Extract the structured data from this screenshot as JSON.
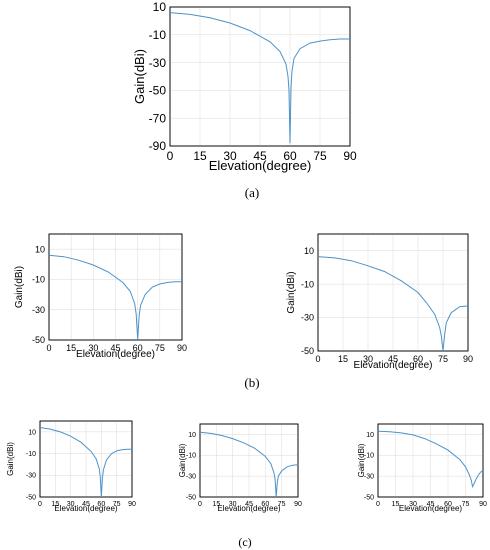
{
  "panel_labels": {
    "a": "(a)",
    "b": "(b)",
    "c": "(c)"
  },
  "colors": {
    "line": "#4c92c9",
    "grid": "#d9d9d9",
    "axes": "#000000"
  },
  "chart_data": [
    {
      "id": "a",
      "type": "line",
      "xlabel": "Elevation(degree)",
      "ylabel": "Gain(dBi)",
      "xlim": [
        0,
        90
      ],
      "ylim": [
        -90,
        10
      ],
      "xticks": [
        "0",
        "15",
        "30",
        "45",
        "60",
        "75",
        "90"
      ],
      "yticks": [
        "10",
        "-10",
        "-30",
        "-50",
        "-70",
        "-90"
      ],
      "grid": true,
      "series": [
        {
          "x": [
            0,
            10,
            20,
            30,
            40,
            50,
            55,
            58,
            59,
            59.5,
            60,
            60.5,
            61,
            62,
            65,
            70,
            75,
            80,
            85,
            90
          ],
          "y": [
            6,
            4.7,
            2.2,
            -1.5,
            -7,
            -15,
            -22,
            -31,
            -40,
            -50,
            -88,
            -48,
            -36,
            -27,
            -20,
            -16,
            -14.5,
            -13.5,
            -13,
            -13
          ]
        }
      ]
    },
    {
      "id": "b1",
      "type": "line",
      "xlabel": "Elevation(degree)",
      "ylabel": "Gain(dBi)",
      "xlim": [
        0,
        90
      ],
      "ylim": [
        -50,
        20
      ],
      "xticks": [
        "0",
        "15",
        "30",
        "45",
        "60",
        "75",
        "90"
      ],
      "yticks": [
        "10",
        "-10",
        "-30",
        "-50"
      ],
      "grid": true,
      "series": [
        {
          "x": [
            0,
            10,
            20,
            30,
            40,
            50,
            55,
            58,
            59,
            60,
            61,
            62,
            65,
            70,
            75,
            80,
            85,
            90
          ],
          "y": [
            6,
            5,
            2.7,
            -0.5,
            -5,
            -12,
            -18,
            -26,
            -33,
            -50,
            -34,
            -27,
            -20,
            -15,
            -13,
            -12,
            -11.5,
            -11.5
          ]
        }
      ]
    },
    {
      "id": "b2",
      "type": "line",
      "xlabel": "Elevation(degree)",
      "ylabel": "Gain(dBi)",
      "xlim": [
        0,
        90
      ],
      "ylim": [
        -50,
        20
      ],
      "xticks": [
        "0",
        "15",
        "30",
        "45",
        "60",
        "75",
        "90"
      ],
      "yticks": [
        "10",
        "-10",
        "-30",
        "-50"
      ],
      "grid": true,
      "series": [
        {
          "x": [
            0,
            10,
            20,
            30,
            40,
            50,
            60,
            65,
            70,
            73,
            74,
            75,
            76,
            77,
            80,
            85,
            90
          ],
          "y": [
            6.5,
            5.7,
            4,
            1,
            -2.5,
            -8,
            -15,
            -21,
            -28,
            -36,
            -41,
            -50,
            -40,
            -33,
            -27,
            -23.5,
            -23
          ]
        }
      ]
    },
    {
      "id": "c1",
      "type": "line",
      "xlabel": "Elevation(degree)",
      "ylabel": "Gain(dBi)",
      "xlim": [
        0,
        90
      ],
      "ylim": [
        -50,
        20
      ],
      "xticks": [
        "0",
        "15",
        "30",
        "45",
        "60",
        "75",
        "90"
      ],
      "yticks": [
        "10",
        "-10",
        "-30",
        "-50"
      ],
      "grid": true,
      "series": [
        {
          "x": [
            0,
            10,
            20,
            30,
            40,
            50,
            55,
            58,
            59,
            60,
            61,
            62,
            65,
            70,
            75,
            80,
            85,
            90
          ],
          "y": [
            14,
            12.5,
            10,
            6,
            0.5,
            -8,
            -15,
            -24,
            -32,
            -50,
            -33,
            -25,
            -16,
            -10,
            -7.5,
            -6.5,
            -6,
            -6
          ]
        }
      ]
    },
    {
      "id": "c2",
      "type": "line",
      "xlabel": "Elevation(degree)",
      "ylabel": "Gain(dBi)",
      "xlim": [
        0,
        90
      ],
      "ylim": [
        -50,
        20
      ],
      "xticks": [
        "0",
        "15",
        "30",
        "45",
        "60",
        "75",
        "90"
      ],
      "yticks": [
        "10",
        "-10",
        "-30",
        "-50"
      ],
      "grid": true,
      "series": [
        {
          "x": [
            0,
            10,
            20,
            30,
            40,
            50,
            60,
            65,
            68,
            69,
            70,
            71,
            72,
            75,
            80,
            85,
            90
          ],
          "y": [
            12,
            11,
            9,
            6,
            2,
            -3,
            -11,
            -18,
            -27,
            -33,
            -50,
            -36,
            -30,
            -25,
            -21,
            -19.5,
            -19
          ]
        }
      ]
    },
    {
      "id": "c3",
      "type": "line",
      "xlabel": "Elevation(degree)",
      "ylabel": "Gain(dBi)",
      "xlim": [
        0,
        90
      ],
      "ylim": [
        -50,
        20
      ],
      "xticks": [
        "0",
        "15",
        "30",
        "45",
        "60",
        "75",
        "90"
      ],
      "yticks": [
        "10",
        "-10",
        "-30",
        "-50"
      ],
      "grid": true,
      "series": [
        {
          "x": [
            0,
            10,
            20,
            30,
            40,
            50,
            60,
            70,
            75,
            78,
            80,
            81,
            82,
            84,
            86,
            88,
            90
          ],
          "y": [
            13,
            12.6,
            11.5,
            9.5,
            6,
            1,
            -5,
            -14,
            -21,
            -28,
            -34,
            -40,
            -38,
            -33,
            -29,
            -26,
            -25
          ]
        }
      ]
    }
  ]
}
